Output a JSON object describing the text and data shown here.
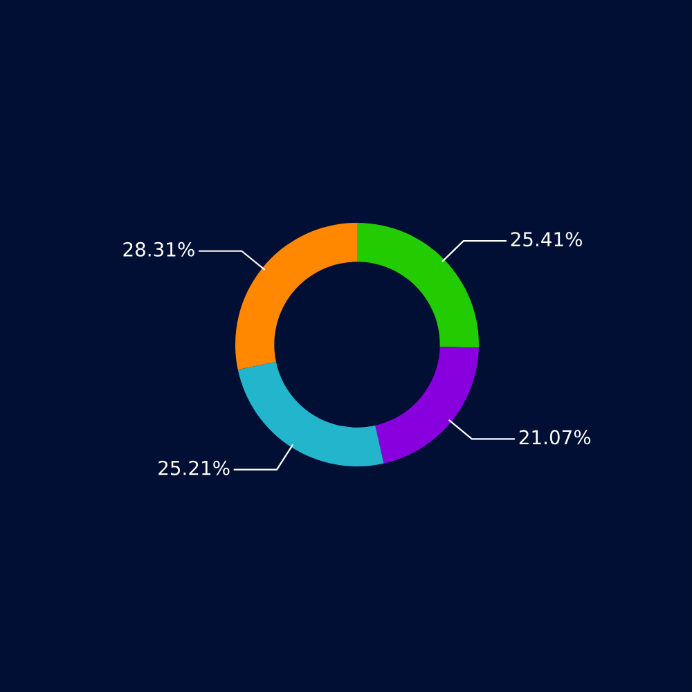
{
  "chart_data": {
    "type": "donut",
    "categories": [
      null,
      null,
      null,
      null
    ],
    "values": [
      25.41,
      21.07,
      25.21,
      28.31
    ],
    "colors": [
      "#22cc00",
      "#8800dd",
      "#22b5cc",
      "#ff8800"
    ],
    "value_labels": [
      "25.41%",
      "21.07%",
      "25.21%",
      "28.31%"
    ],
    "legend": false
  }
}
